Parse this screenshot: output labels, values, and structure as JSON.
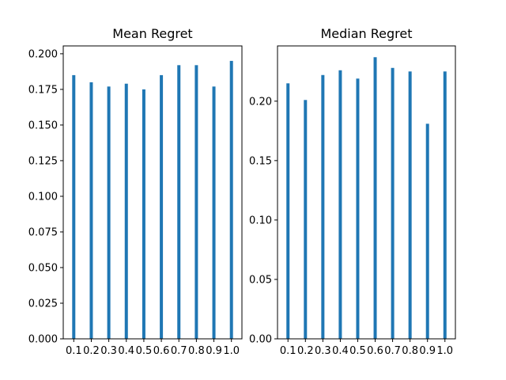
{
  "chart_data": [
    {
      "type": "bar",
      "title": "Mean Regret",
      "xlabel": "",
      "ylabel": "",
      "categories": [
        "0.1",
        "0.2",
        "0.3",
        "0.4",
        "0.5",
        "0.6",
        "0.7",
        "0.8",
        "0.9",
        "1.0"
      ],
      "values": [
        0.185,
        0.18,
        0.177,
        0.179,
        0.175,
        0.185,
        0.192,
        0.192,
        0.177,
        0.195
      ],
      "ylim": [
        0,
        0.2055
      ],
      "yticks": [
        "0.000",
        "0.025",
        "0.050",
        "0.075",
        "0.100",
        "0.125",
        "0.150",
        "0.175",
        "0.200"
      ],
      "grid": false,
      "bar_color": "#1f77b4"
    },
    {
      "type": "bar",
      "title": "Median Regret",
      "xlabel": "",
      "ylabel": "",
      "categories": [
        "0.1",
        "0.2",
        "0.3",
        "0.4",
        "0.5",
        "0.6",
        "0.7",
        "0.8",
        "0.9",
        "1.0"
      ],
      "values": [
        0.215,
        0.201,
        0.222,
        0.226,
        0.219,
        0.237,
        0.228,
        0.225,
        0.181,
        0.225
      ],
      "ylim": [
        0,
        0.2465
      ],
      "yticks": [
        "0.00",
        "0.05",
        "0.10",
        "0.15",
        "0.20"
      ],
      "grid": false,
      "bar_color": "#1f77b4"
    }
  ]
}
